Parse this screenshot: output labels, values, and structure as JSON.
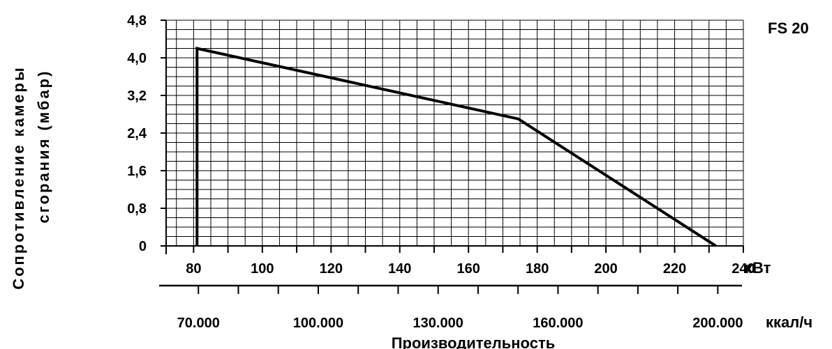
{
  "chart_data": {
    "type": "line",
    "title": "FS 20",
    "ylabel_line1": "Сопротивление камеры",
    "ylabel_line2": "сгорания (мбар)",
    "xlabel": "Производительность",
    "unit_kw": "кВт",
    "unit_kcal": "ккал/ч",
    "ylim": [
      0,
      4.8
    ],
    "xlim": [
      72,
      240
    ],
    "y_ticks": [
      "0",
      "0,8",
      "1,6",
      "2,4",
      "3,2",
      "4,0",
      "4,8"
    ],
    "x_ticks_kw": [
      "80",
      "100",
      "120",
      "140",
      "160",
      "180",
      "200",
      "220",
      "240"
    ],
    "x_ticks_kcal": [
      "70.000",
      "100.000",
      "130.000",
      "160.000",
      "200.000"
    ],
    "grid": true,
    "series": [
      {
        "points": [
          {
            "x": 81,
            "y": 0
          },
          {
            "x": 81,
            "y": 4.2
          },
          {
            "x": 174.5,
            "y": 2.7
          },
          {
            "x": 232,
            "y": 0
          }
        ]
      }
    ]
  }
}
